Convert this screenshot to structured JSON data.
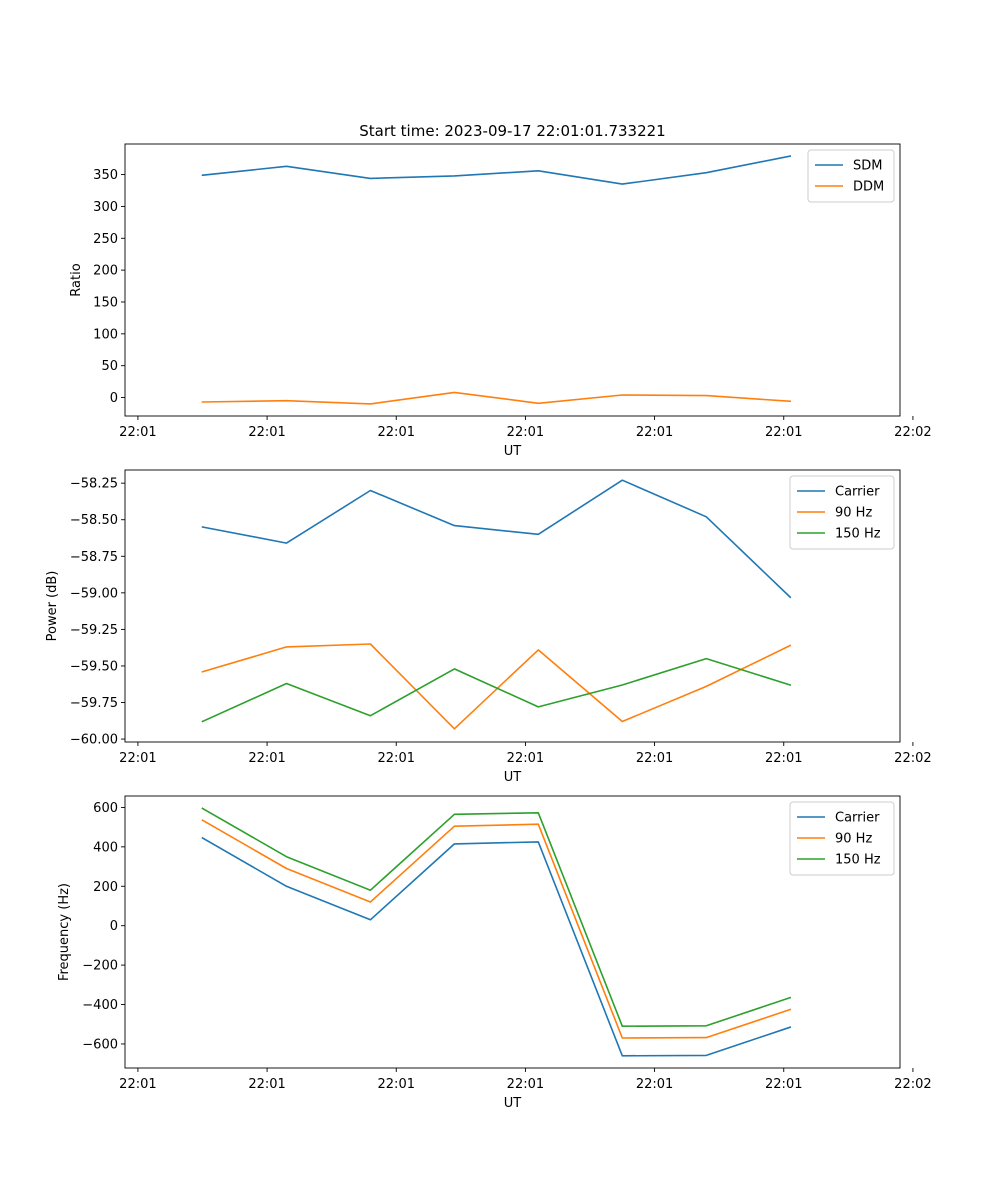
{
  "title": "Start time: 2023-09-17 22:01:01.733221",
  "chart_data": [
    {
      "type": "line",
      "title": "Start time: 2023-09-17 22:01:01.733221",
      "xlabel": "UT",
      "ylabel": "Ratio",
      "x": [
        0.5,
        1.15,
        1.8,
        2.45,
        3.1,
        3.75,
        4.4,
        5.05
      ],
      "xlim": [
        -0.1,
        5.9
      ],
      "xticks": [
        0,
        1,
        2,
        3,
        4,
        5,
        6
      ],
      "xticklabels": [
        "22:01",
        "22:01",
        "22:01",
        "22:01",
        "22:01",
        "22:01",
        "22:02"
      ],
      "ylim": [
        -29,
        398
      ],
      "yticks": [
        0,
        50,
        100,
        150,
        200,
        250,
        300,
        350
      ],
      "yticklabels": [
        "0",
        "50",
        "100",
        "150",
        "200",
        "250",
        "300",
        "350"
      ],
      "legend": "top-right",
      "series": [
        {
          "name": "SDM",
          "color": "#1f77b4",
          "values": [
            349,
            363,
            344,
            348,
            356,
            335,
            353,
            379
          ]
        },
        {
          "name": "DDM",
          "color": "#ff7f0e",
          "values": [
            -7,
            -5,
            -10,
            8,
            -9,
            4,
            3,
            -6
          ]
        }
      ]
    },
    {
      "type": "line",
      "xlabel": "UT",
      "ylabel": "Power (dB)",
      "x": [
        0.5,
        1.15,
        1.8,
        2.45,
        3.1,
        3.75,
        4.4,
        5.05
      ],
      "xlim": [
        -0.1,
        5.9
      ],
      "xticks": [
        0,
        1,
        2,
        3,
        4,
        5,
        6
      ],
      "xticklabels": [
        "22:01",
        "22:01",
        "22:01",
        "22:01",
        "22:01",
        "22:01",
        "22:02"
      ],
      "ylim": [
        -60.02,
        -58.16
      ],
      "yticks": [
        -60.0,
        -59.75,
        -59.5,
        -59.25,
        -59.0,
        -58.75,
        -58.5,
        -58.25
      ],
      "yticklabels": [
        "−60.00",
        "−59.75",
        "−59.50",
        "−59.25",
        "−59.00",
        "−58.75",
        "−58.50",
        "−58.25"
      ],
      "legend": "top-right",
      "series": [
        {
          "name": "Carrier",
          "color": "#1f77b4",
          "values": [
            -58.55,
            -58.66,
            -58.3,
            -58.54,
            -58.6,
            -58.23,
            -58.48,
            -59.03
          ]
        },
        {
          "name": "90 Hz",
          "color": "#ff7f0e",
          "values": [
            -59.54,
            -59.37,
            -59.35,
            -59.93,
            -59.39,
            -59.88,
            -59.64,
            -59.36
          ]
        },
        {
          "name": "150 Hz",
          "color": "#2ca02c",
          "values": [
            -59.88,
            -59.62,
            -59.84,
            -59.52,
            -59.78,
            -59.63,
            -59.45,
            -59.63
          ]
        }
      ]
    },
    {
      "type": "line",
      "xlabel": "UT",
      "ylabel": "Frequency (Hz)",
      "x": [
        0.5,
        1.15,
        1.8,
        2.45,
        3.1,
        3.75,
        4.4,
        5.05
      ],
      "xlim": [
        -0.1,
        5.9
      ],
      "xticks": [
        0,
        1,
        2,
        3,
        4,
        5,
        6
      ],
      "xticklabels": [
        "22:01",
        "22:01",
        "22:01",
        "22:01",
        "22:01",
        "22:01",
        "22:02"
      ],
      "ylim": [
        -722,
        658
      ],
      "yticks": [
        -600,
        -400,
        -200,
        0,
        200,
        400,
        600
      ],
      "yticklabels": [
        "−600",
        "−400",
        "−200",
        "0",
        "200",
        "400",
        "600"
      ],
      "legend": "top-right",
      "series": [
        {
          "name": "Carrier",
          "color": "#1f77b4",
          "values": [
            445,
            200,
            30,
            415,
            425,
            -660,
            -658,
            -515
          ]
        },
        {
          "name": "90 Hz",
          "color": "#ff7f0e",
          "values": [
            535,
            290,
            120,
            505,
            515,
            -570,
            -568,
            -425
          ]
        },
        {
          "name": "150 Hz",
          "color": "#2ca02c",
          "values": [
            595,
            350,
            180,
            565,
            573,
            -510,
            -508,
            -365
          ]
        }
      ]
    }
  ]
}
